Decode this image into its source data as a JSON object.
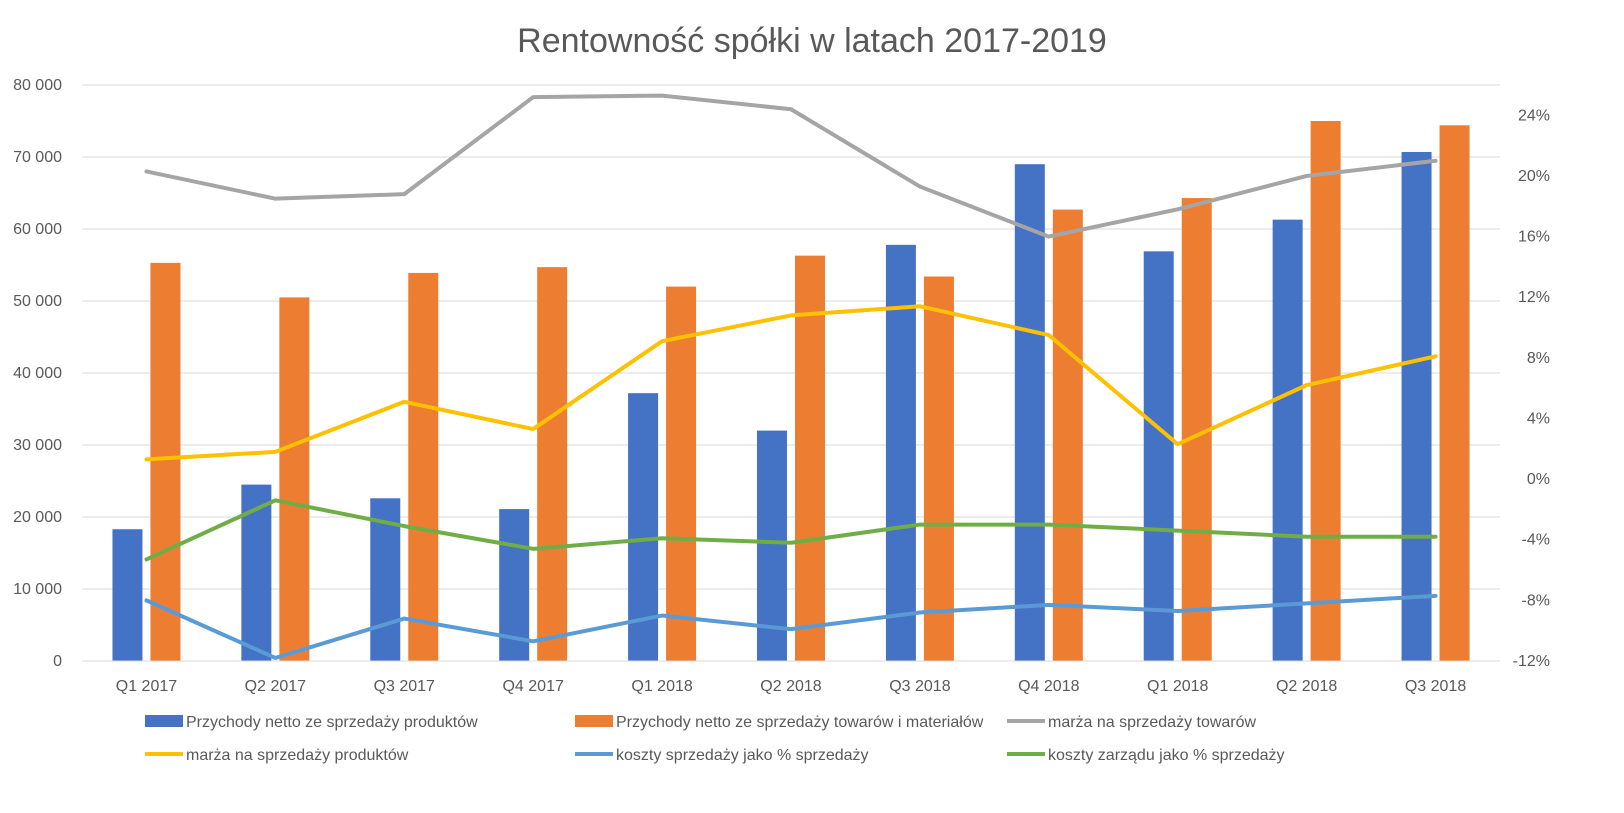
{
  "chart_data": {
    "type": "bar",
    "title": "Rentowność spółki w latach 2017-2019",
    "categories": [
      "Q1 2017",
      "Q2 2017",
      "Q3 2017",
      "Q4 2017",
      "Q1 2018",
      "Q2 2018",
      "Q3 2018",
      "Q4 2018",
      "Q1 2018",
      "Q2 2018",
      "Q3 2018"
    ],
    "left_axis": {
      "min": 0,
      "max": 80000,
      "ticks": [
        0,
        10000,
        20000,
        30000,
        40000,
        50000,
        60000,
        70000,
        80000
      ],
      "tick_labels": [
        "0",
        "10 000",
        "20 000",
        "30 000",
        "40 000",
        "50 000",
        "60 000",
        "70 000",
        "80 000"
      ]
    },
    "right_axis": {
      "min": -12,
      "max": 26,
      "ticks": [
        -12,
        -8,
        -4,
        0,
        4,
        8,
        12,
        16,
        20,
        24
      ],
      "tick_labels": [
        "-12%",
        "-8%",
        "-4%",
        "0%",
        "4%",
        "8%",
        "12%",
        "16%",
        "20%",
        "24%"
      ]
    },
    "grid": true,
    "legend_position": "bottom",
    "bar_series": [
      {
        "name": "Przychody netto ze sprzedaży produktów",
        "color": "#4472C4",
        "values": [
          18300,
          24500,
          22600,
          21100,
          37200,
          32000,
          57800,
          69000,
          56900,
          61300,
          70700
        ]
      },
      {
        "name": "Przychody netto ze sprzedaży towarów i materiałów",
        "color": "#ED7D31",
        "values": [
          55300,
          50500,
          53900,
          54700,
          52000,
          56300,
          53400,
          62700,
          64300,
          75000,
          74400
        ]
      }
    ],
    "line_series": [
      {
        "name": "marża na sprzedaży towarów",
        "color": "#A5A5A5",
        "values": [
          20.3,
          18.5,
          18.8,
          25.2,
          25.3,
          24.4,
          19.3,
          16.0,
          17.8,
          20.0,
          21.0
        ]
      },
      {
        "name": "marża na sprzedaży produktów",
        "color": "#FFC000",
        "values": [
          1.3,
          1.8,
          5.1,
          3.3,
          9.1,
          10.8,
          11.4,
          9.5,
          2.3,
          6.2,
          8.1
        ]
      },
      {
        "name": "koszty sprzedaży jako % sprzedaży",
        "color": "#5B9BD5",
        "values": [
          -8.0,
          -11.8,
          -9.2,
          -10.7,
          -9.0,
          -9.9,
          -8.8,
          -8.3,
          -8.7,
          -8.2,
          -7.7
        ]
      },
      {
        "name": "koszty zarządu jako % sprzedaży",
        "color": "#70AD47",
        "values": [
          -5.3,
          -1.4,
          -3.1,
          -4.6,
          -3.9,
          -4.2,
          -3.0,
          -3.0,
          -3.4,
          -3.8,
          -3.8
        ]
      }
    ],
    "legend": [
      {
        "label": "Przychody netto ze sprzedaży produktów",
        "kind": "bar",
        "color": "#4472C4"
      },
      {
        "label": "Przychody netto ze sprzedaży towarów i materiałów",
        "kind": "bar",
        "color": "#ED7D31"
      },
      {
        "label": "marża na sprzedaży towarów",
        "kind": "line",
        "color": "#A5A5A5"
      },
      {
        "label": "marża na sprzedaży produktów",
        "kind": "line",
        "color": "#FFC000"
      },
      {
        "label": "koszty sprzedaży jako % sprzedaży",
        "kind": "line",
        "color": "#5B9BD5"
      },
      {
        "label": "koszty zarządu jako % sprzedaży",
        "kind": "line",
        "color": "#70AD47"
      }
    ]
  }
}
